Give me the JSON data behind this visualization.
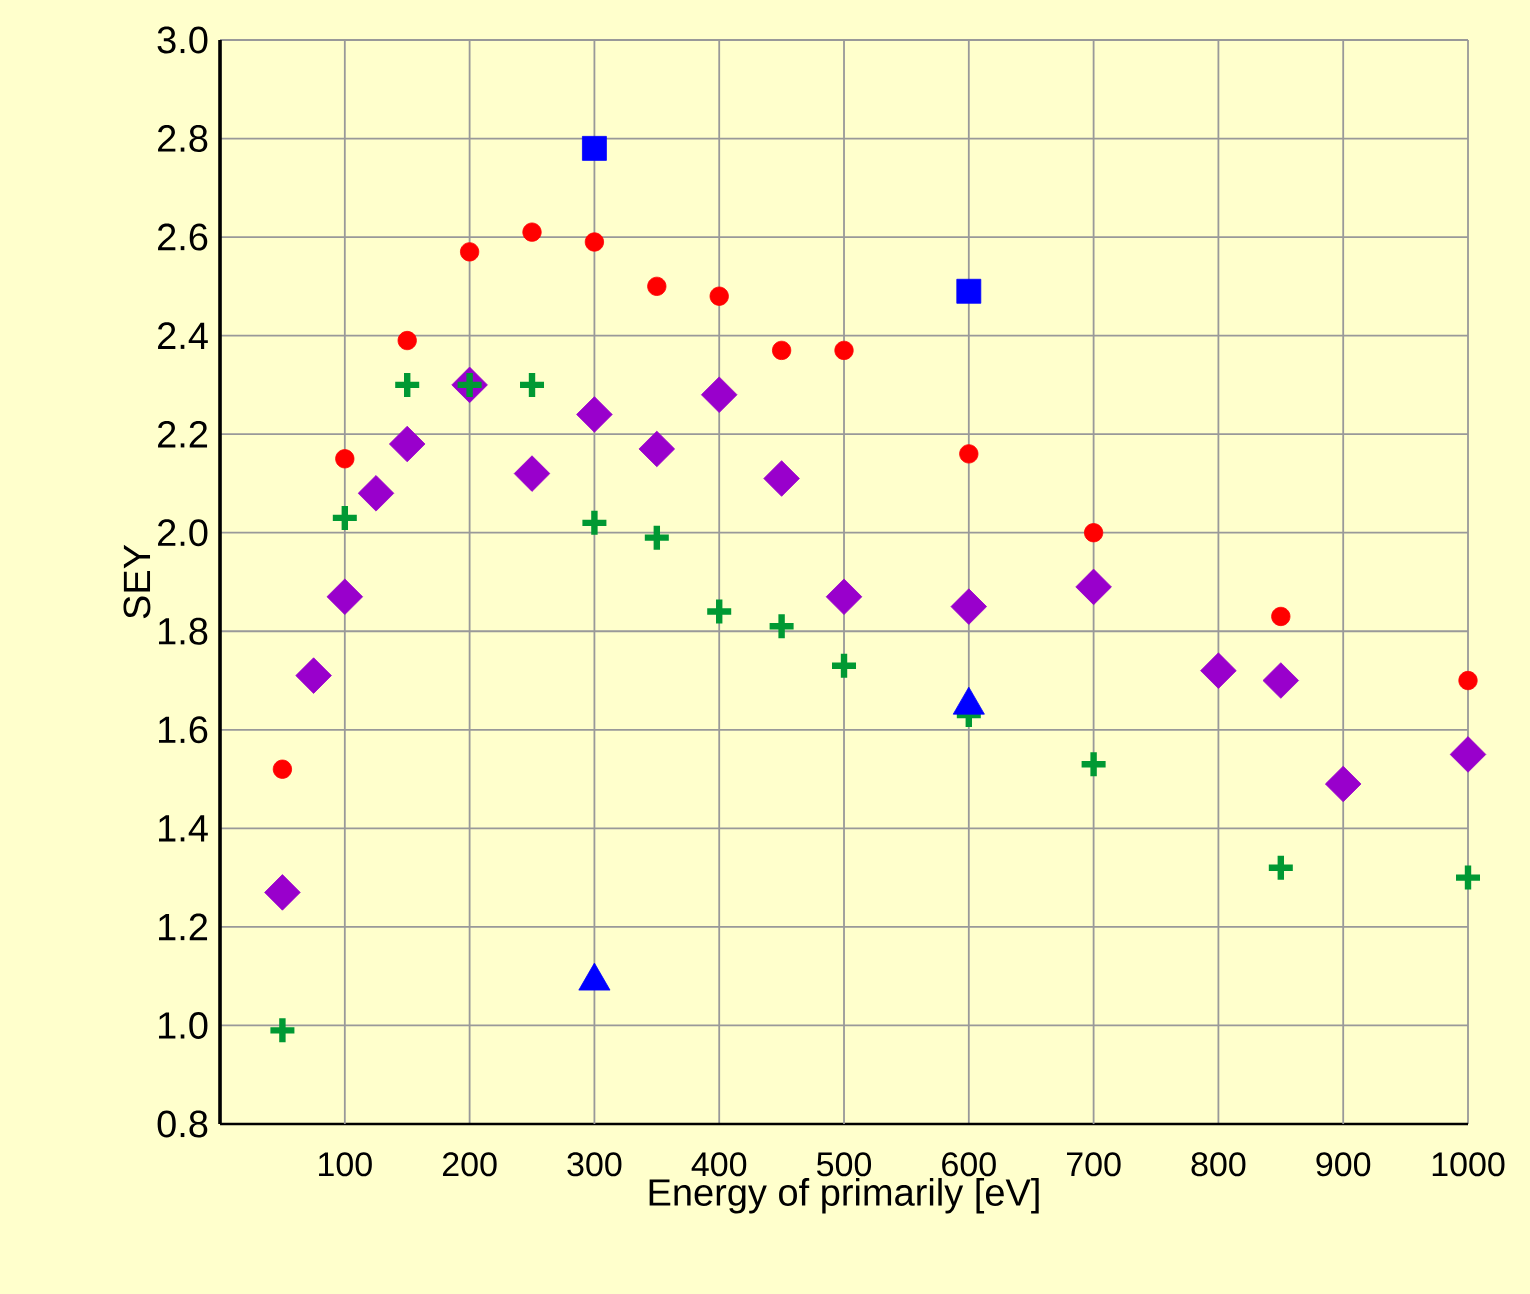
{
  "chart_data": {
    "type": "scatter",
    "xlabel": "Energy of primarily [eV]",
    "ylabel": "SEY",
    "xlim": [
      0,
      1000
    ],
    "ylim": [
      0.8,
      3.0
    ],
    "xticks": [
      100,
      200,
      300,
      400,
      500,
      600,
      700,
      800,
      900,
      1000
    ],
    "yticks": [
      {
        "value": 0.8,
        "label": "0.8"
      },
      {
        "value": 1.0,
        "label": "1.0"
      },
      {
        "value": 1.2,
        "label": "1.2"
      },
      {
        "value": 1.4,
        "label": "1.4"
      },
      {
        "value": 1.6,
        "label": "1.6"
      },
      {
        "value": 1.8,
        "label": "1.8"
      },
      {
        "value": 2.0,
        "label": "2.0"
      },
      {
        "value": 2.2,
        "label": "2.2"
      },
      {
        "value": 2.4,
        "label": "2.4"
      },
      {
        "value": 2.6,
        "label": "2.6"
      },
      {
        "value": 2.8,
        "label": "2.8"
      },
      {
        "value": 3.0,
        "label": "3.0"
      }
    ],
    "grid": true,
    "series": [
      {
        "color": "#ff0000",
        "marker": "circle",
        "x": [
          50,
          100,
          150,
          200,
          250,
          300,
          350,
          400,
          450,
          500,
          600,
          700,
          850,
          1000
        ],
        "values": [
          1.52,
          2.15,
          2.39,
          2.57,
          2.61,
          2.59,
          2.5,
          2.48,
          2.37,
          2.37,
          2.16,
          2.0,
          1.83,
          1.7
        ]
      },
      {
        "color": "#9900cc",
        "marker": "diamond",
        "x": [
          50,
          75,
          100,
          125,
          150,
          200,
          250,
          300,
          350,
          400,
          450,
          500,
          600,
          700,
          800,
          850,
          900,
          1000
        ],
        "values": [
          1.27,
          1.71,
          1.87,
          2.08,
          2.18,
          2.3,
          2.12,
          2.24,
          2.17,
          2.28,
          2.11,
          1.87,
          1.85,
          1.89,
          1.72,
          1.7,
          1.49,
          1.55
        ]
      },
      {
        "color": "#009933",
        "marker": "cross",
        "x": [
          50,
          100,
          150,
          200,
          250,
          300,
          350,
          400,
          450,
          500,
          600,
          700,
          850,
          1000
        ],
        "values": [
          0.99,
          2.03,
          2.3,
          2.3,
          2.3,
          2.02,
          1.99,
          1.84,
          1.81,
          1.73,
          1.63,
          1.53,
          1.32,
          1.3
        ]
      },
      {
        "color": "#0000ff",
        "marker": "square",
        "x": [
          300,
          600
        ],
        "values": [
          2.78,
          2.49
        ]
      },
      {
        "color": "#0000ff",
        "marker": "triangle",
        "x": [
          300,
          600
        ],
        "values": [
          1.09,
          1.65
        ]
      }
    ]
  }
}
